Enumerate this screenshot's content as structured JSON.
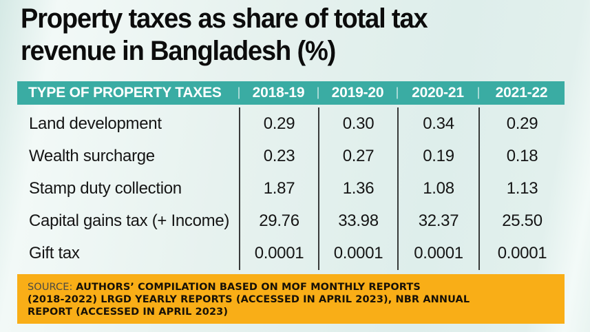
{
  "title": {
    "full": "Property taxes as share of total tax revenue in Bangladesh (%)",
    "lines": [
      "Property taxes as share of total tax",
      "revenue in Bangladesh (%)"
    ]
  },
  "table": {
    "columns": [
      "TYPE OF PROPERTY TAXES",
      "2018-19",
      "2019-20",
      "2020-21",
      "2021-22"
    ],
    "rows": [
      {
        "label": "Land development",
        "values": [
          "0.29",
          "0.30",
          "0.34",
          "0.29"
        ]
      },
      {
        "label": "Wealth surcharge",
        "values": [
          "0.23",
          "0.27",
          "0.19",
          "0.18"
        ]
      },
      {
        "label": "Stamp duty collection",
        "values": [
          "1.87",
          "1.36",
          "1.08",
          "1.13"
        ]
      },
      {
        "label": "Capital gains tax (+ Income)",
        "values": [
          "29.76",
          "33.98",
          "32.37",
          "25.50"
        ]
      },
      {
        "label": "Gift tax",
        "values": [
          "0.0001",
          "0.0001",
          "0.0001",
          "0.0001"
        ]
      }
    ]
  },
  "source": {
    "prefix": "SOURCE:",
    "lines": [
      "AUTHORS’ COMPILATION BASED ON MOF MONTHLY REPORTS",
      "(2018-2022) LRGD YEARLY REPORTS (ACCESSED IN APRIL 2023), NBR ANNUAL",
      "REPORT (ACCESSED IN APRIL 2023)"
    ]
  },
  "colors": {
    "header_bg": "#3aaca3",
    "header_text": "#ffffff",
    "source_bg": "#f9ae17",
    "body_text": "#151515",
    "divider": "#191919",
    "background_tint": "#e7f2ef"
  },
  "chart_data": {
    "type": "table",
    "title": "Property taxes as share of total tax revenue in Bangladesh (%)",
    "row_header": "TYPE OF PROPERTY TAXES",
    "categories": [
      "2018-19",
      "2019-20",
      "2020-21",
      "2021-22"
    ],
    "unit": "%",
    "series": [
      {
        "name": "Land development",
        "values": [
          0.29,
          0.3,
          0.34,
          0.29
        ]
      },
      {
        "name": "Wealth surcharge",
        "values": [
          0.23,
          0.27,
          0.19,
          0.18
        ]
      },
      {
        "name": "Stamp duty collection",
        "values": [
          1.87,
          1.36,
          1.08,
          1.13
        ]
      },
      {
        "name": "Capital gains tax (+ Income)",
        "values": [
          29.76,
          33.98,
          32.37,
          25.5
        ]
      },
      {
        "name": "Gift tax",
        "values": [
          0.0001,
          0.0001,
          0.0001,
          0.0001
        ]
      }
    ],
    "source": "SOURCE: AUTHORS’ COMPILATION BASED ON MOF MONTHLY REPORTS (2018-2022) LRGD YEARLY REPORTS (ACCESSED IN APRIL 2023), NBR ANNUAL REPORT (ACCESSED IN APRIL 2023)"
  }
}
